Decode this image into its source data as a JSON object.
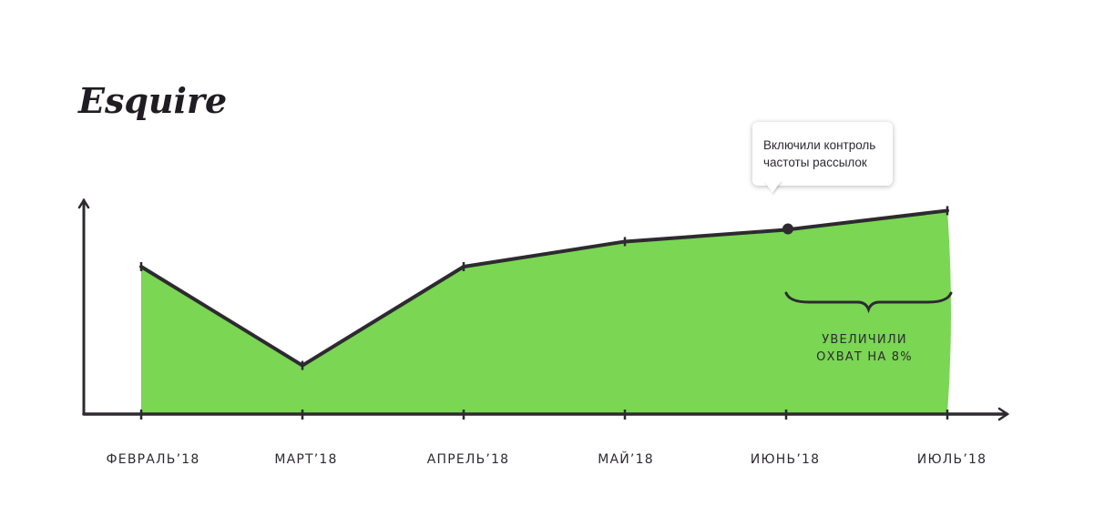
{
  "brand": {
    "logo_text": "Esquire"
  },
  "annotation_callout": {
    "lines": [
      "Включили контроль",
      "частоты рассылок"
    ]
  },
  "annotation_note": {
    "lines": [
      "УВЕЛИЧИЛИ",
      "ОХВАТ НА 8%"
    ]
  },
  "colors": {
    "area_fill": "#7ad653",
    "line": "#2d2a30",
    "axis": "#2d2a30",
    "text": "#2d2a30"
  },
  "chart_data": {
    "type": "area",
    "categories": [
      "ФЕВРАЛЬ’18",
      "МАРТ’18",
      "АПРЕЛЬ’18",
      "МАЙ’18",
      "ИЮНЬ’18",
      "ИЮЛЬ’18"
    ],
    "values": [
      100,
      33,
      100,
      117,
      125,
      138
    ],
    "ylim": [
      0,
      145
    ],
    "y_axis_labels": false,
    "grid": false,
    "highlighted_point": "ИЮНЬ’18",
    "title": "",
    "xlabel": "",
    "ylabel": ""
  }
}
